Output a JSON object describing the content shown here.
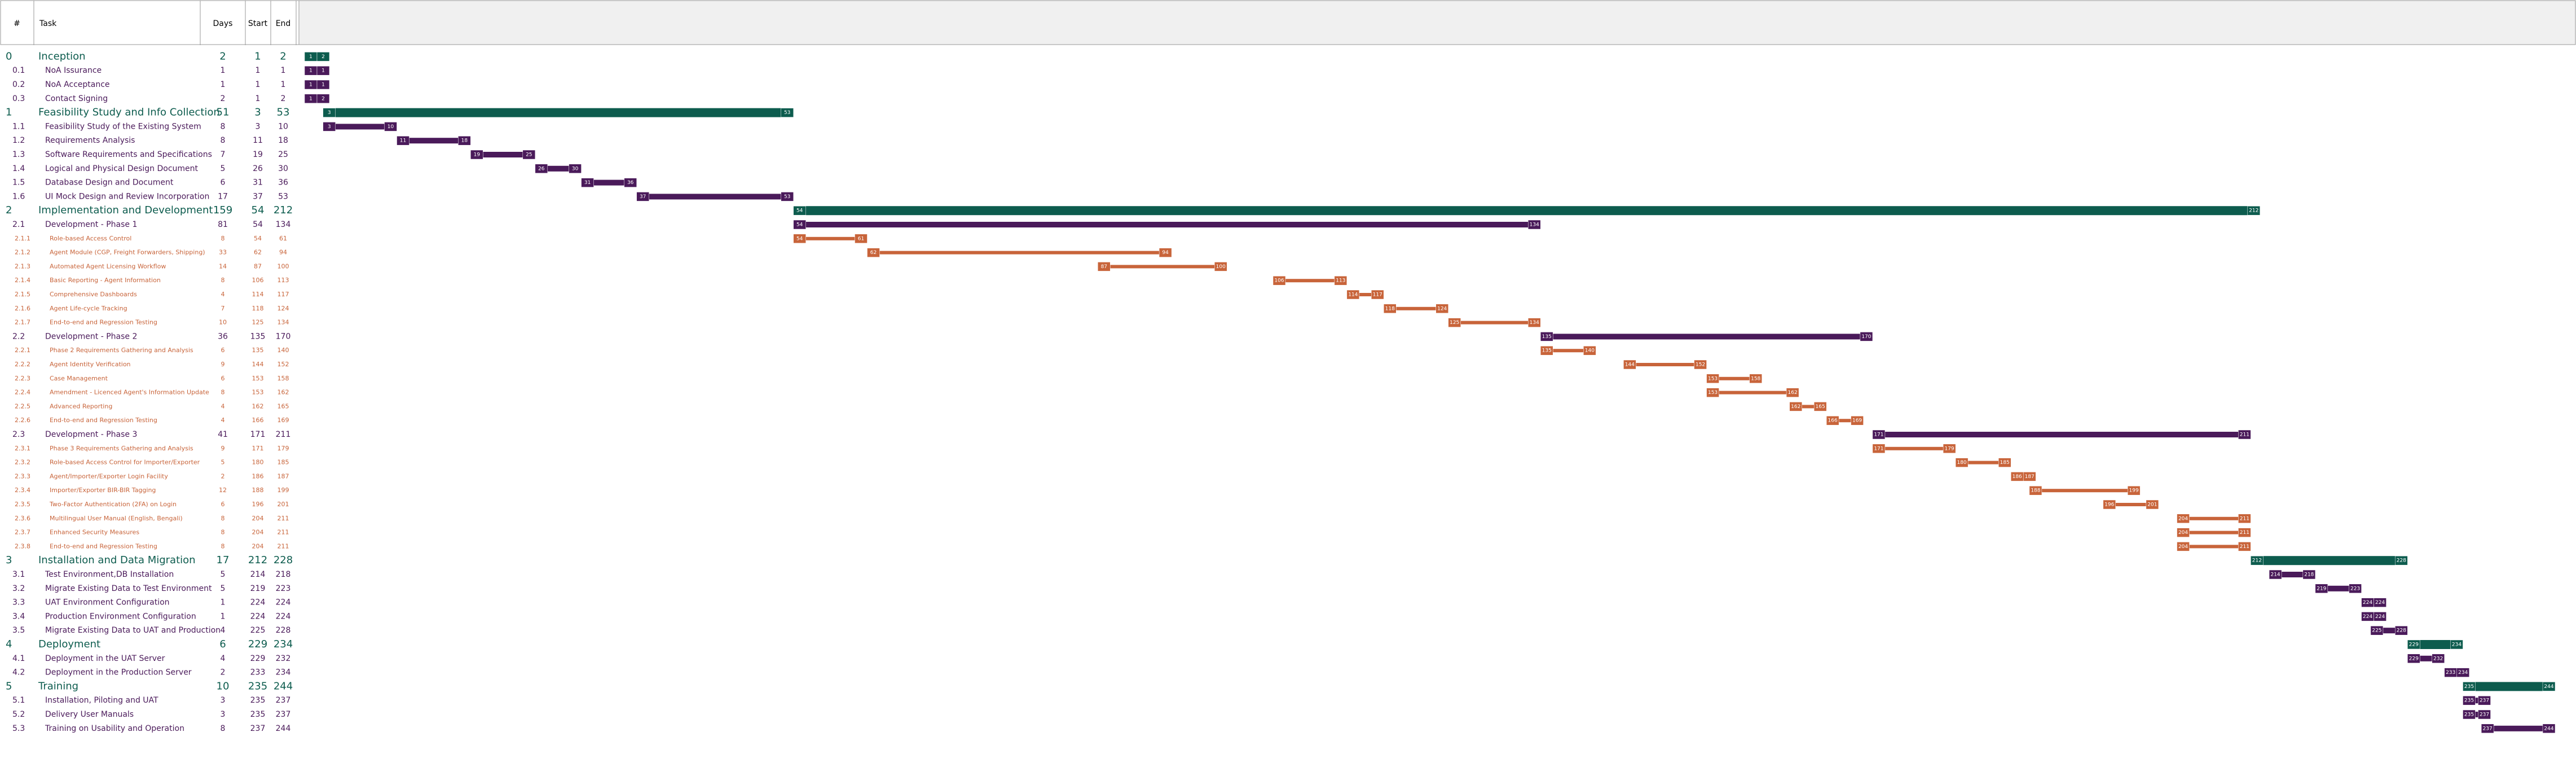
{
  "header": {
    "id": "#",
    "task": "Task",
    "days": "Days",
    "start": "Start",
    "end": "End"
  },
  "colors": {
    "phase": "#0d5c4e",
    "task": "#4a1a5a",
    "subtask": "#c8643a"
  },
  "timeline": {
    "first_day": 1,
    "last_day": 244
  },
  "rows": [
    {
      "kind": "phase",
      "id": "0",
      "task": "Inception",
      "days": 2,
      "start": 1,
      "end": 2
    },
    {
      "kind": "task",
      "id": "0.1",
      "task": "NoA Issurance",
      "days": 1,
      "start": 1,
      "end": 1
    },
    {
      "kind": "task",
      "id": "0.2",
      "task": "NoA Acceptance",
      "days": 1,
      "start": 1,
      "end": 1
    },
    {
      "kind": "task",
      "id": "0.3",
      "task": "Contact Signing",
      "days": 2,
      "start": 1,
      "end": 2
    },
    {
      "kind": "phase",
      "id": "1",
      "task": "Feasibility Study and Info Collection",
      "days": 51,
      "start": 3,
      "end": 53
    },
    {
      "kind": "task",
      "id": "1.1",
      "task": "Feasibility Study of the Existing System",
      "days": 8,
      "start": 3,
      "end": 10
    },
    {
      "kind": "task",
      "id": "1.2",
      "task": "Requirements Analysis",
      "days": 8,
      "start": 11,
      "end": 18
    },
    {
      "kind": "task",
      "id": "1.3",
      "task": "Software Requirements and Specifications",
      "days": 7,
      "start": 19,
      "end": 25
    },
    {
      "kind": "task",
      "id": "1.4",
      "task": "Logical and Physical Design Document",
      "days": 5,
      "start": 26,
      "end": 30
    },
    {
      "kind": "task",
      "id": "1.5",
      "task": "Database Design and Document",
      "days": 6,
      "start": 31,
      "end": 36
    },
    {
      "kind": "task",
      "id": "1.6",
      "task": "UI Mock Design and Review Incorporation",
      "days": 17,
      "start": 37,
      "end": 53
    },
    {
      "kind": "phase",
      "id": "2",
      "task": "Implementation and Development",
      "days": 159,
      "start": 54,
      "end": 212
    },
    {
      "kind": "task",
      "id": "2.1",
      "task": "Development - Phase 1",
      "days": 81,
      "start": 54,
      "end": 134
    },
    {
      "kind": "subtask",
      "id": "2.1.1",
      "task": "Role-based Access Control",
      "days": 8,
      "start": 54,
      "end": 61
    },
    {
      "kind": "subtask",
      "id": "2.1.2",
      "task": "Agent Module (CGP, Freight Forwarders, Shipping)",
      "days": 33,
      "start": 62,
      "end": 94
    },
    {
      "kind": "subtask",
      "id": "2.1.3",
      "task": "Automated Agent Licensing Workflow",
      "days": 14,
      "start": 87,
      "end": 100
    },
    {
      "kind": "subtask",
      "id": "2.1.4",
      "task": "Basic Reporting - Agent Information",
      "days": 8,
      "start": 106,
      "end": 113
    },
    {
      "kind": "subtask",
      "id": "2.1.5",
      "task": "Comprehensive Dashboards",
      "days": 4,
      "start": 114,
      "end": 117
    },
    {
      "kind": "subtask",
      "id": "2.1.6",
      "task": "Agent Life-cycle Tracking",
      "days": 7,
      "start": 118,
      "end": 124
    },
    {
      "kind": "subtask",
      "id": "2.1.7",
      "task": "End-to-end and Regression Testing",
      "days": 10,
      "start": 125,
      "end": 134
    },
    {
      "kind": "task",
      "id": "2.2",
      "task": "Development - Phase 2",
      "days": 36,
      "start": 135,
      "end": 170
    },
    {
      "kind": "subtask",
      "id": "2.2.1",
      "task": "Phase 2 Requirements Gathering and Analysis",
      "days": 6,
      "start": 135,
      "end": 140
    },
    {
      "kind": "subtask",
      "id": "2.2.2",
      "task": "Agent Identity Verification",
      "days": 9,
      "start": 144,
      "end": 152
    },
    {
      "kind": "subtask",
      "id": "2.2.3",
      "task": "Case Management",
      "days": 6,
      "start": 153,
      "end": 158
    },
    {
      "kind": "subtask",
      "id": "2.2.4",
      "task": "Amendment - Licenced Agent's Information Update",
      "days": 8,
      "start": 153,
      "end": 162
    },
    {
      "kind": "subtask",
      "id": "2.2.5",
      "task": "Advanced Reporting",
      "days": 4,
      "start": 162,
      "end": 165
    },
    {
      "kind": "subtask",
      "id": "2.2.6",
      "task": "End-to-end and Regression Testing",
      "days": 4,
      "start": 166,
      "end": 169
    },
    {
      "kind": "task",
      "id": "2.3",
      "task": "Development - Phase 3",
      "days": 41,
      "start": 171,
      "end": 211
    },
    {
      "kind": "subtask",
      "id": "2.3.1",
      "task": "Phase 3 Requirements Gathering and Analysis",
      "days": 9,
      "start": 171,
      "end": 179
    },
    {
      "kind": "subtask",
      "id": "2.3.2",
      "task": "Role-based Access Control for Importer/Exporter",
      "days": 5,
      "start": 180,
      "end": 185
    },
    {
      "kind": "subtask",
      "id": "2.3.3",
      "task": "Agent/Importer/Exporter Login Facility",
      "days": 2,
      "start": 186,
      "end": 187
    },
    {
      "kind": "subtask",
      "id": "2.3.4",
      "task": "Importer/Exporter BIR-BIR Tagging",
      "days": 12,
      "start": 188,
      "end": 199
    },
    {
      "kind": "subtask",
      "id": "2.3.5",
      "task": "Two-Factor Authentication (2FA) on Login",
      "days": 6,
      "start": 196,
      "end": 201
    },
    {
      "kind": "subtask",
      "id": "2.3.6",
      "task": "Multilingual User Manual (English, Bengali)",
      "days": 8,
      "start": 204,
      "end": 211
    },
    {
      "kind": "subtask",
      "id": "2.3.7",
      "task": "Enhanced Security Measures",
      "days": 8,
      "start": 204,
      "end": 211
    },
    {
      "kind": "subtask",
      "id": "2.3.8",
      "task": "End-to-end and Regression Testing",
      "days": 8,
      "start": 204,
      "end": 211
    },
    {
      "kind": "phase",
      "id": "3",
      "task": "Installation and Data Migration",
      "days": 17,
      "start": 212,
      "end": 228
    },
    {
      "kind": "task",
      "id": "3.1",
      "task": "Test Environment,DB Installation",
      "days": 5,
      "start": 214,
      "end": 218
    },
    {
      "kind": "task",
      "id": "3.2",
      "task": "Migrate Existing Data to Test Environment",
      "days": 5,
      "start": 219,
      "end": 223
    },
    {
      "kind": "task",
      "id": "3.3",
      "task": "UAT Environment Configuration",
      "days": 1,
      "start": 224,
      "end": 224
    },
    {
      "kind": "task",
      "id": "3.4",
      "task": "Production Environment Configuration",
      "days": 1,
      "start": 224,
      "end": 224
    },
    {
      "kind": "task",
      "id": "3.5",
      "task": "Migrate Existing Data to UAT and Production",
      "days": 4,
      "start": 225,
      "end": 228
    },
    {
      "kind": "phase",
      "id": "4",
      "task": "Deployment",
      "days": 6,
      "start": 229,
      "end": 234
    },
    {
      "kind": "task",
      "id": "4.1",
      "task": "Deployment in the UAT Server",
      "days": 4,
      "start": 229,
      "end": 232
    },
    {
      "kind": "task",
      "id": "4.2",
      "task": "Deployment in the Production Server",
      "days": 2,
      "start": 233,
      "end": 234
    },
    {
      "kind": "phase",
      "id": "5",
      "task": "Training",
      "days": 10,
      "start": 235,
      "end": 244
    },
    {
      "kind": "task",
      "id": "5.1",
      "task": "Installation, Piloting and UAT",
      "days": 3,
      "start": 235,
      "end": 237
    },
    {
      "kind": "task",
      "id": "5.2",
      "task": "Delivery User Manuals",
      "days": 3,
      "start": 235,
      "end": 237
    },
    {
      "kind": "task",
      "id": "5.3",
      "task": "Training on Usability and Operation",
      "days": 8,
      "start": 237,
      "end": 244
    }
  ]
}
